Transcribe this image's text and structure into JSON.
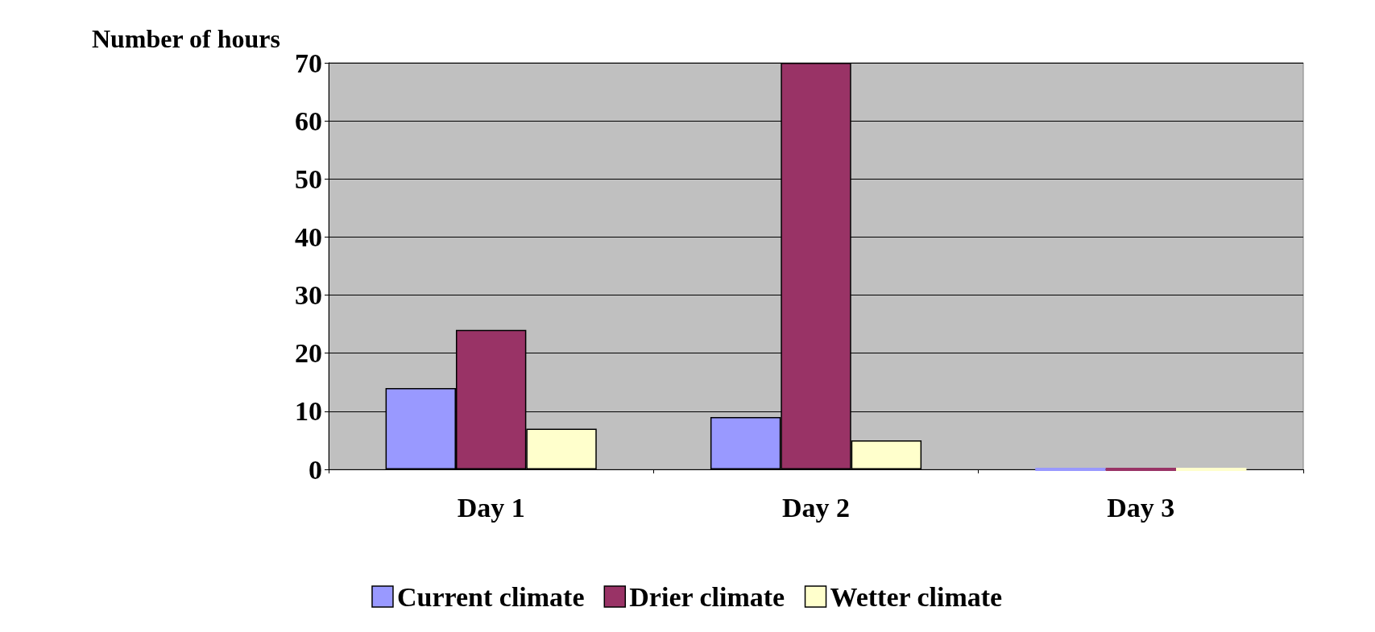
{
  "chart_data": {
    "type": "bar",
    "ylabel": "Number of hours",
    "categories": [
      "Day 1",
      "Day 2",
      "Day 3"
    ],
    "series": [
      {
        "name": "Current climate",
        "color": "#9999ff",
        "values": [
          14,
          9,
          0
        ]
      },
      {
        "name": "Drier climate",
        "color": "#993366",
        "values": [
          24,
          70,
          0
        ]
      },
      {
        "name": "Wetter climate",
        "color": "#ffffcc",
        "values": [
          7,
          5,
          0
        ]
      }
    ],
    "ylim": [
      0,
      70
    ],
    "yticks": [
      0,
      10,
      20,
      30,
      40,
      50,
      60,
      70
    ],
    "grid": "y",
    "legend": "bottom"
  }
}
